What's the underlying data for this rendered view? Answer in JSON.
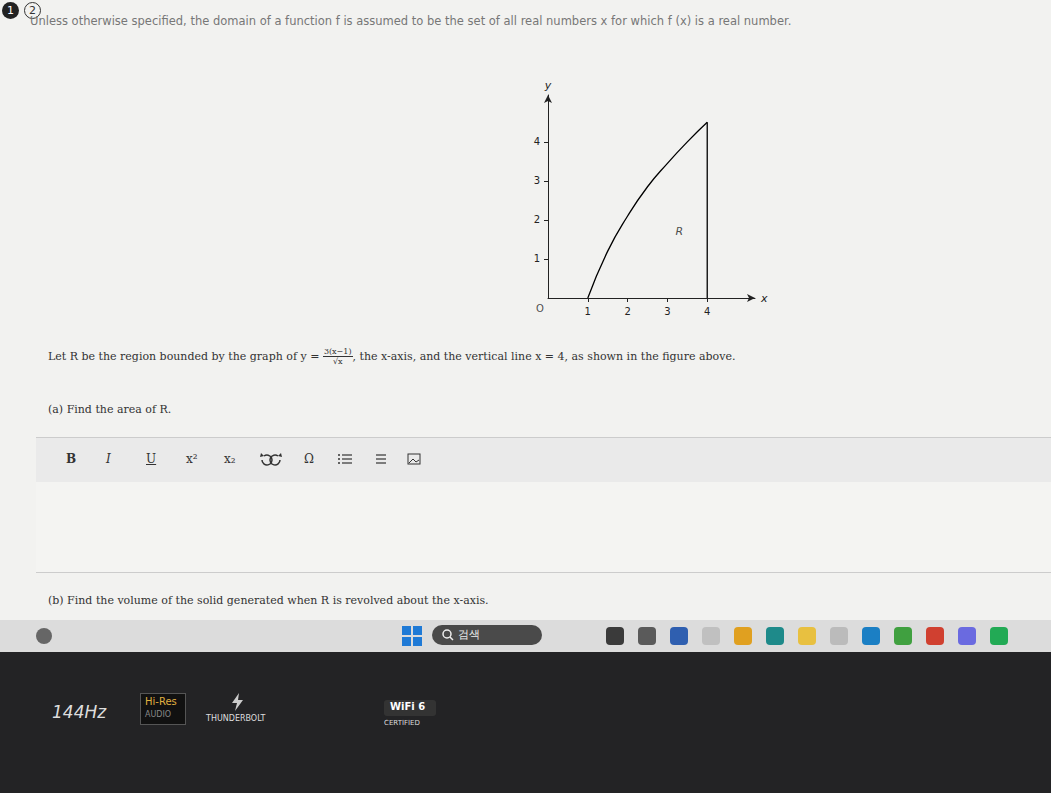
{
  "header": {
    "tabs": [
      "1",
      "2"
    ],
    "instructions": "Unless otherwise specified, the domain of a function f is assumed to be the set of all real numbers x for which f (x) is a real number."
  },
  "chart_data": {
    "type": "line",
    "color": "#000000",
    "x": [
      1,
      1.5,
      2,
      2.5,
      3,
      3.5,
      4
    ],
    "values": [
      0,
      1.2,
      2.1,
      2.85,
      3.45,
      4.0,
      4.5
    ],
    "boundary": {
      "x": [
        4,
        4
      ],
      "values": [
        0,
        4.5
      ]
    },
    "xlabel": "x",
    "ylabel": "y",
    "origin_label": "O",
    "annotations": [
      {
        "text": "R",
        "x": 3.3,
        "y": 1.7
      }
    ],
    "xlim": [
      0,
      5.2
    ],
    "ylim": [
      0,
      5.2
    ],
    "xticks": [
      1,
      2,
      3,
      4
    ],
    "yticks": [
      1,
      2,
      3,
      4
    ],
    "grid": false
  },
  "question": {
    "before": "Let R be the region bounded by the graph of ",
    "lhs": "y = ",
    "numerator": "3(x−1)",
    "denominator": "√x",
    "after": ", the x-axis, and the vertical line x = 4, as shown in the figure above.",
    "parts": [
      {
        "label": "(a)",
        "text": "Find the area of R."
      },
      {
        "label": "(b)",
        "text": "Find the volume of the solid generated when R is revolved about the x-axis."
      }
    ]
  },
  "editor_toolbar": [
    "B",
    "I",
    "U",
    "x²",
    "x₂",
    "Ω"
  ],
  "taskbar": {
    "search": "검색"
  },
  "stickers": {
    "refresh": "144Hz",
    "audio": [
      "Hi-Res",
      "AUDIO"
    ],
    "port": "THUNDERBOLT",
    "wifi": [
      "WiFi 6",
      "CERTIFIED"
    ]
  }
}
